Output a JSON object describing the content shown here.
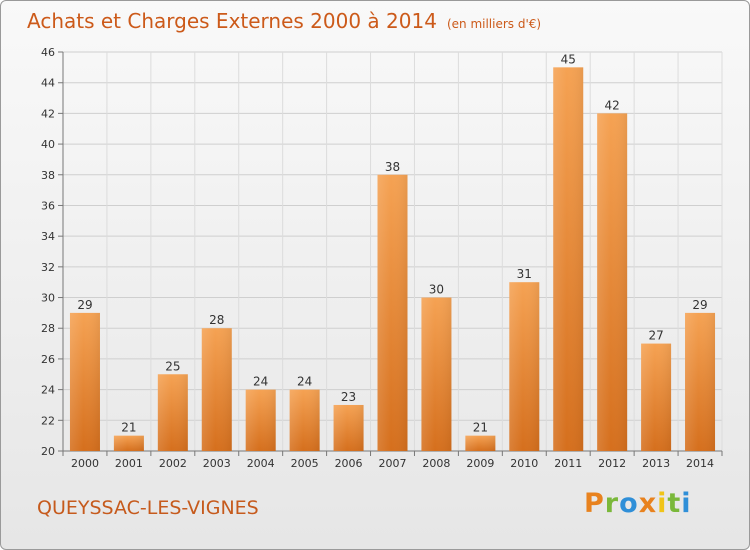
{
  "header": {
    "title": "Achats et Charges Externes 2000 à 2014",
    "unit": "(en milliers d'€)"
  },
  "footer": {
    "commune": "QUEYSSAC-LES-VIGNES",
    "logo": [
      "P",
      "r",
      "o",
      "x",
      "i",
      "t",
      "i"
    ],
    "logo_colors": [
      "#e8821e",
      "#7ab83a",
      "#2f8fd8",
      "#e8821e",
      "#f0c418",
      "#7ab83a",
      "#2f8fd8"
    ]
  },
  "chart_data": {
    "type": "bar",
    "title": "Achats et Charges Externes 2000 à 2014",
    "subtitle": "(en milliers d'€)",
    "categories": [
      "2000",
      "2001",
      "2002",
      "2003",
      "2004",
      "2005",
      "2006",
      "2007",
      "2008",
      "2009",
      "2010",
      "2011",
      "2012",
      "2013",
      "2014"
    ],
    "values": [
      29,
      21,
      25,
      28,
      24,
      24,
      23,
      38,
      30,
      21,
      31,
      45,
      42,
      27,
      29
    ],
    "ylim": [
      20,
      46
    ],
    "yticks": [
      20,
      22,
      24,
      26,
      28,
      30,
      32,
      34,
      36,
      38,
      40,
      42,
      44,
      46
    ],
    "grid": true,
    "bar_color": "#f39c4a",
    "bar_color_dark": "#d77420"
  }
}
